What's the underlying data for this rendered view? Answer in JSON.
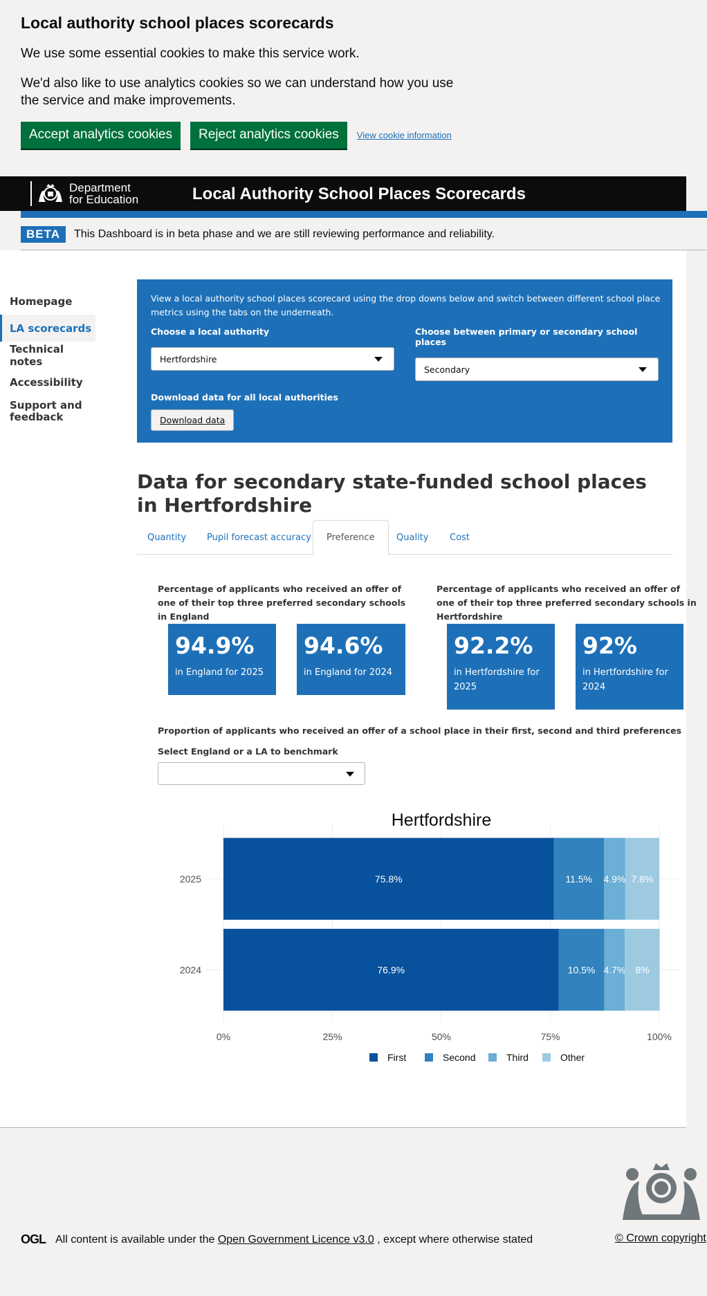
{
  "cookie": {
    "heading": "Local authority school places scorecards",
    "para1": "We use some essential cookies to make this service work.",
    "para2": "We'd also like to use analytics cookies so we can understand how you use the service and make improvements.",
    "accept_label": "Accept analytics cookies",
    "reject_label": "Reject analytics cookies",
    "info_link": "View cookie information"
  },
  "header": {
    "dept_line1": "Department",
    "dept_line2": "for Education",
    "title": "Local Authority School Places Scorecards"
  },
  "beta": {
    "tag": "BETA",
    "text": "This Dashboard is in beta phase and we are still reviewing performance and reliability."
  },
  "sidenav": {
    "items": [
      "Homepage",
      "LA scorecards",
      "Technical notes",
      "Accessibility",
      "Support and feedback"
    ],
    "active_index": 1
  },
  "panel": {
    "intro": "View a local authority school places scorecard using the drop downs below and switch between different school place metrics using the tabs on the underneath.",
    "la_label": "Choose a local authority",
    "la_value": "Hertfordshire",
    "phase_label": "Choose between primary or secondary school places",
    "phase_value": "Secondary",
    "download_label": "Download data for all local authorities",
    "download_button": "Download data"
  },
  "section_title": "Data for secondary state-funded school places in Hertfordshire",
  "tabs": [
    "Quantity",
    "Pupil forecast accuracy",
    "Preference",
    "Quality",
    "Cost"
  ],
  "active_tab": "Preference",
  "kpis": {
    "england_heading": "Percentage of applicants who received an offer of one of their top three preferred secondary schools in England",
    "la_heading": "Percentage of applicants who received an offer of one of their top three preferred secondary schools in Hertfordshire",
    "cards": [
      {
        "value": "94.9%",
        "label": "in England for 2025"
      },
      {
        "value": "94.6%",
        "label": "in England for 2024"
      },
      {
        "value": "92.2%",
        "label": "in Hertfordshire for 2025"
      },
      {
        "value": "92%",
        "label": "in Hertfordshire for 2024"
      }
    ]
  },
  "proportion_heading": "Proportion of applicants who received an offer of a school place in their first, second and third preferences",
  "benchmark_label": "Select England or a LA to benchmark",
  "benchmark_value": "",
  "chart_data": {
    "type": "bar",
    "orientation": "horizontal",
    "stacked": true,
    "title": "Hertfordshire",
    "categories": [
      "2025",
      "2024"
    ],
    "series": [
      {
        "name": "First",
        "values": [
          75.8,
          76.9
        ],
        "labels": [
          "75.8%",
          "76.9%"
        ],
        "color": "#08519c"
      },
      {
        "name": "Second",
        "values": [
          11.5,
          10.5
        ],
        "labels": [
          "11.5%",
          "10.5%"
        ],
        "color": "#3182bd"
      },
      {
        "name": "Third",
        "values": [
          4.9,
          4.7
        ],
        "labels": [
          "4.9%",
          "4.7%"
        ],
        "color": "#6baed6"
      },
      {
        "name": "Other",
        "values": [
          7.8,
          8
        ],
        "labels": [
          "7.8%",
          "8%"
        ],
        "color": "#9ecae1"
      }
    ],
    "xticks": [
      "0%",
      "25%",
      "50%",
      "75%",
      "100%"
    ],
    "xlim": [
      0,
      100
    ],
    "legend_position": "bottom",
    "grid": true
  },
  "footer": {
    "ogl": "OGL",
    "text_before": "All content is available under the",
    "licence_link": "Open Government Licence v3.0",
    "text_after": ", except where otherwise stated",
    "copyright": "© Crown copyright"
  }
}
